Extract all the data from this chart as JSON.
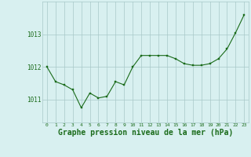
{
  "x": [
    0,
    1,
    2,
    3,
    4,
    5,
    6,
    7,
    8,
    9,
    10,
    11,
    12,
    13,
    14,
    15,
    16,
    17,
    18,
    19,
    20,
    21,
    22,
    23
  ],
  "y": [
    1012.0,
    1011.55,
    1011.45,
    1011.3,
    1010.75,
    1011.2,
    1011.05,
    1011.1,
    1011.55,
    1011.45,
    1012.0,
    1012.35,
    1012.35,
    1012.35,
    1012.35,
    1012.25,
    1012.1,
    1012.05,
    1012.05,
    1012.1,
    1012.25,
    1012.55,
    1013.05,
    1013.6
  ],
  "line_color": "#1a6b1a",
  "marker_color": "#1a6b1a",
  "bg_color": "#d8f0f0",
  "grid_color": "#a8c8c8",
  "xlabel": "Graphe pression niveau de la mer (hPa)",
  "xlabel_fontsize": 7,
  "tick_color": "#1a6b1a",
  "ytick_labels": [
    "1011",
    "1012",
    "1013"
  ],
  "ytick_values": [
    1011,
    1012,
    1013
  ],
  "ylim": [
    1010.3,
    1014.0
  ],
  "xlim": [
    -0.5,
    23.5
  ]
}
